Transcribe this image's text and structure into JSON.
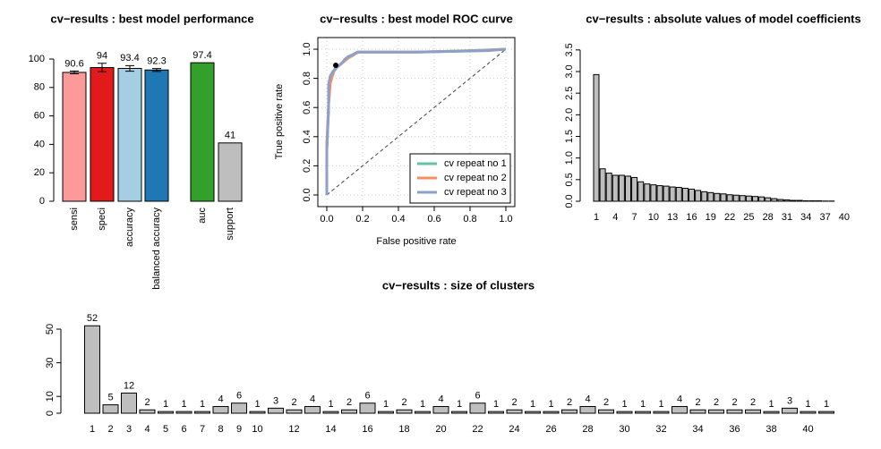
{
  "chart_data": [
    {
      "type": "bar",
      "title": "cv−results : best model performance",
      "categories": [
        "sensi",
        "speci",
        "accuracy",
        "balanced accuracy",
        "auc",
        "support"
      ],
      "values": [
        90.6,
        94,
        93.4,
        92.3,
        97.4,
        41
      ],
      "errors": [
        1,
        3,
        2,
        1,
        null,
        null
      ],
      "colors": [
        "#FB9A99",
        "#E31A1C",
        "#A6CEE3",
        "#1F78B4",
        "#33A02C",
        "#BEBEBE"
      ],
      "ylim": [
        0,
        100
      ],
      "yticks": [
        0,
        20,
        40,
        60,
        80,
        100
      ]
    },
    {
      "type": "line",
      "title": "cv−results : best model ROC curve",
      "x_label": "False positive rate",
      "y_label": "True positive rate",
      "series": [
        {
          "name": "cv repeat no 1",
          "color": "#66C2A5",
          "x": [
            0,
            0,
            0.01,
            0.01,
            0.02,
            0.03,
            0.05,
            0.07,
            0.1,
            0.12,
            0.15,
            0.17,
            0.5,
            0.8,
            1
          ],
          "values": [
            0,
            0.3,
            0.6,
            0.75,
            0.8,
            0.84,
            0.87,
            0.89,
            0.92,
            0.94,
            0.96,
            0.98,
            0.98,
            0.99,
            1
          ]
        },
        {
          "name": "cv repeat no 2",
          "color": "#FC8D62",
          "x": [
            0,
            0,
            0.01,
            0.02,
            0.03,
            0.04,
            0.06,
            0.08,
            0.1,
            0.13,
            0.16,
            0.18,
            0.5,
            0.85,
            1
          ],
          "values": [
            0,
            0.35,
            0.62,
            0.77,
            0.81,
            0.85,
            0.88,
            0.9,
            0.92,
            0.95,
            0.97,
            0.98,
            0.98,
            0.99,
            1
          ]
        },
        {
          "name": "cv repeat no 3",
          "color": "#8DA0CB",
          "x": [
            0,
            0,
            0.01,
            0.01,
            0.02,
            0.04,
            0.05,
            0.08,
            0.1,
            0.12,
            0.14,
            0.17,
            0.5,
            0.9,
            1
          ],
          "values": [
            0,
            0.32,
            0.58,
            0.76,
            0.82,
            0.85,
            0.87,
            0.9,
            0.93,
            0.95,
            0.96,
            0.98,
            0.98,
            0.99,
            1
          ]
        }
      ],
      "best_point": {
        "x": 0.05,
        "y": 0.89
      },
      "xlim": [
        -0.05,
        1.05
      ],
      "ylim": [
        -0.08,
        1.08
      ],
      "xticks": [
        {
          "value": 0,
          "label": "0.0"
        },
        0.2,
        0.4,
        0.6,
        0.8,
        {
          "value": 1,
          "label": "1.0"
        }
      ],
      "yticks": [
        {
          "value": 0,
          "label": "0.0"
        },
        0.2,
        0.4,
        0.6,
        0.8,
        {
          "value": 1,
          "label": "1.0"
        }
      ],
      "grid": true,
      "legend": "bottomright"
    },
    {
      "type": "bar",
      "title": "cv−results : absolute values of model coefficients",
      "categories": [
        1,
        null,
        null,
        4,
        null,
        null,
        7,
        null,
        null,
        10,
        null,
        null,
        13,
        null,
        null,
        16,
        null,
        null,
        19,
        null,
        null,
        22,
        null,
        null,
        25,
        null,
        null,
        28,
        null,
        null,
        31,
        null,
        null,
        34,
        null,
        null,
        37,
        null,
        null,
        40
      ],
      "values": [
        2.93,
        0.75,
        0.65,
        0.6,
        0.6,
        0.58,
        0.55,
        0.45,
        0.4,
        0.38,
        0.36,
        0.35,
        0.33,
        0.32,
        0.3,
        0.28,
        0.25,
        0.22,
        0.2,
        0.18,
        0.17,
        0.15,
        0.14,
        0.13,
        0.12,
        0.11,
        0.1,
        0.08,
        0.06,
        0.04,
        0.03,
        0.02,
        0.02,
        0.01,
        0.01,
        0.01,
        0.005,
        0.005,
        0,
        0
      ],
      "color": "#BEBEBE",
      "ylim": [
        0,
        3.6
      ],
      "yticks": [
        {
          "value": 0,
          "label": "0.0"
        },
        0.5,
        {
          "value": 1,
          "label": "1.0"
        },
        1.5,
        {
          "value": 2,
          "label": "2.0"
        },
        2.5,
        {
          "value": 3,
          "label": "3.0"
        },
        3.5
      ]
    },
    {
      "type": "bar",
      "title": "cv−results : size of clusters",
      "categories": [
        1,
        2,
        3,
        4,
        5,
        6,
        7,
        8,
        9,
        10,
        null,
        12,
        null,
        14,
        null,
        16,
        null,
        18,
        null,
        20,
        null,
        22,
        null,
        24,
        null,
        26,
        null,
        28,
        null,
        30,
        null,
        32,
        null,
        34,
        null,
        36,
        null,
        38,
        null,
        40,
        null
      ],
      "values": [
        52,
        5,
        12,
        2,
        1,
        1,
        1,
        4,
        6,
        1,
        3,
        2,
        4,
        1,
        2,
        6,
        1,
        2,
        1,
        4,
        1,
        6,
        1,
        2,
        1,
        1,
        2,
        4,
        2,
        1,
        1,
        1,
        4,
        2,
        2,
        2,
        2,
        1,
        3,
        1,
        1
      ],
      "color": "#BEBEBE",
      "ylim": [
        0,
        55
      ],
      "yticks": [
        0,
        10,
        30,
        50
      ]
    }
  ]
}
